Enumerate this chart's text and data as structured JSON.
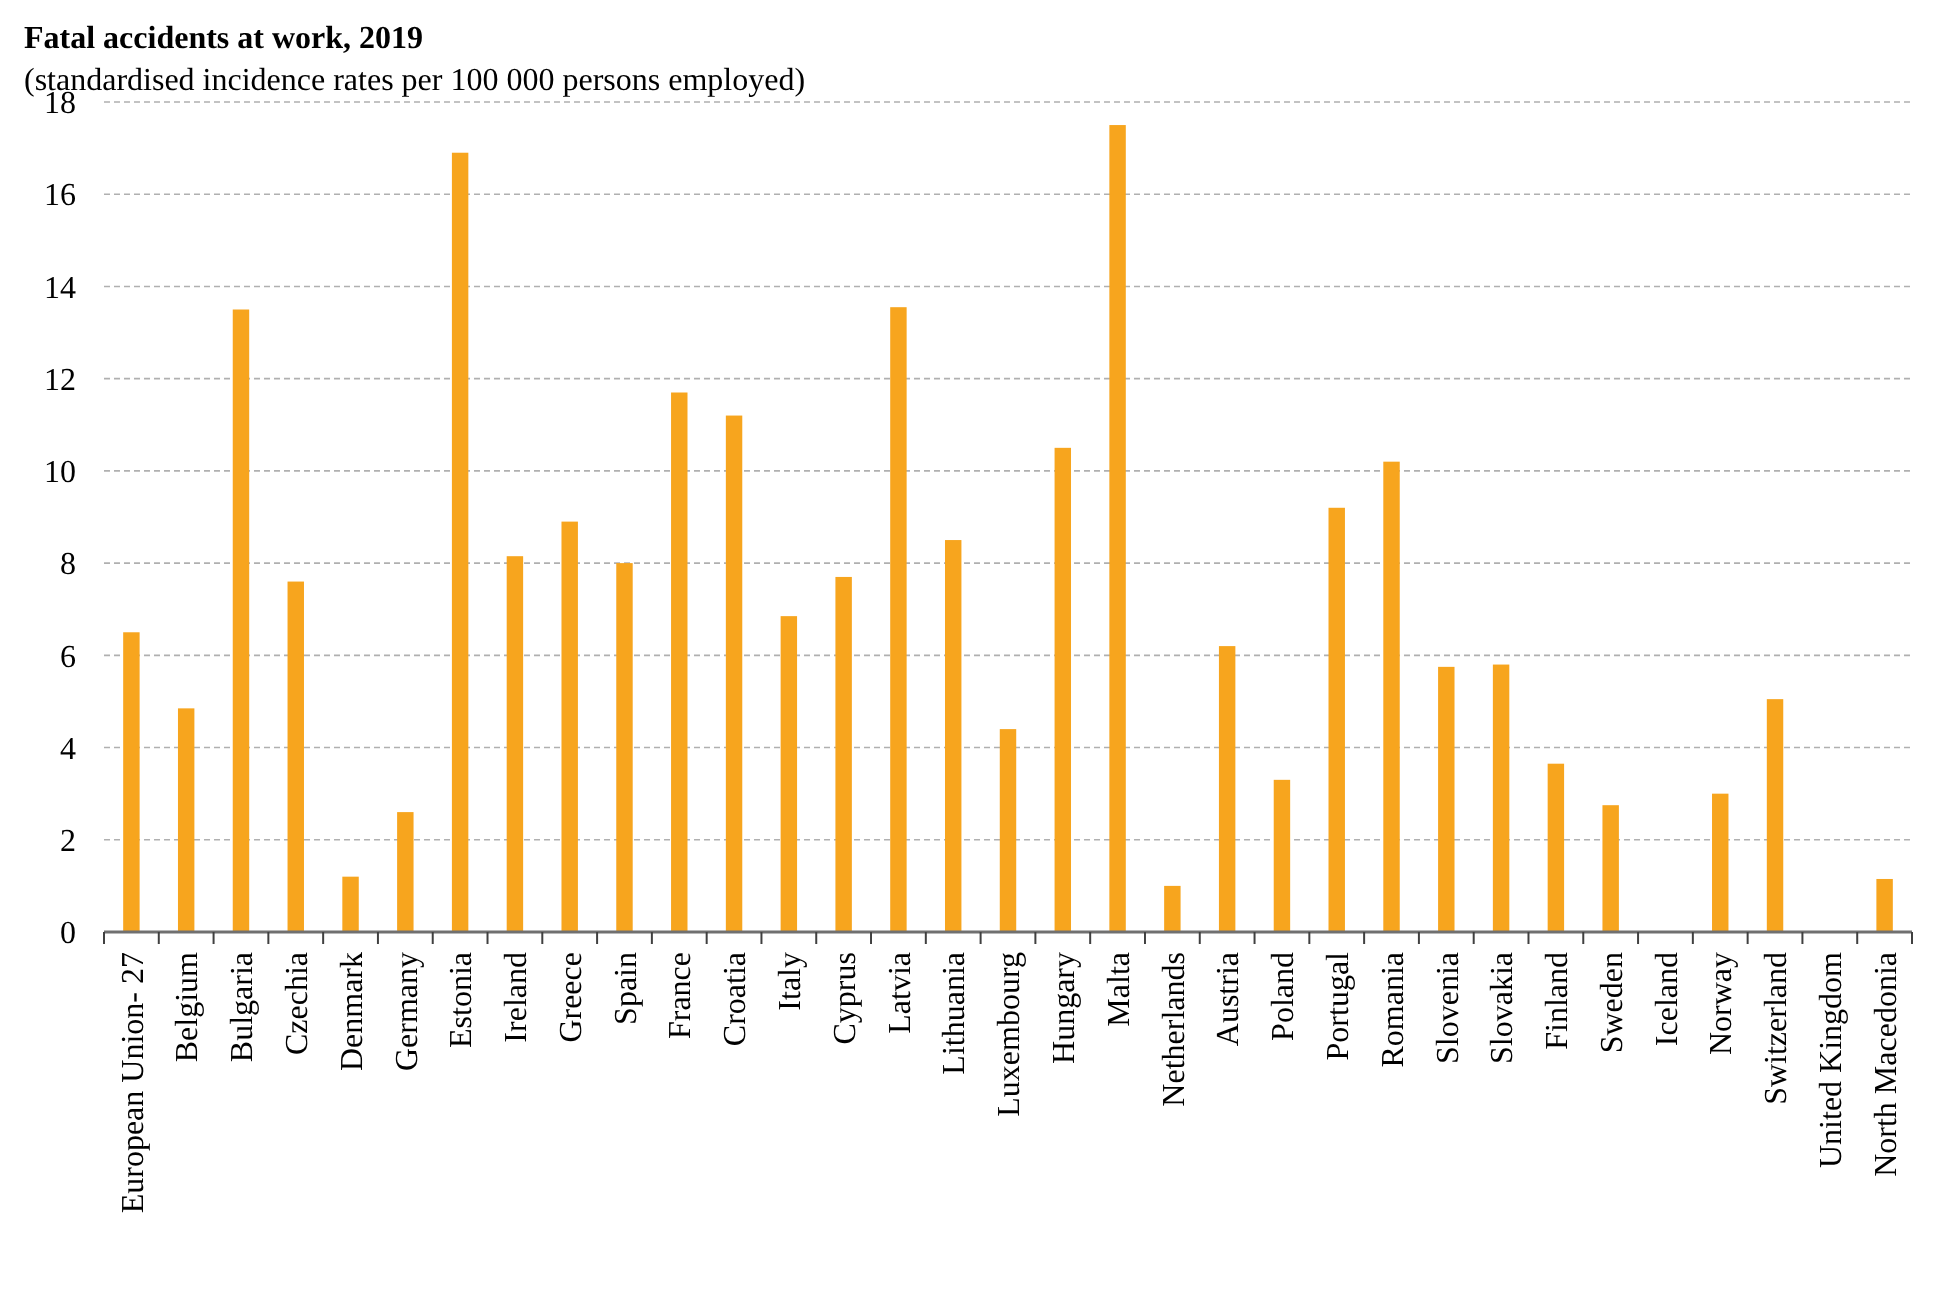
{
  "chart_data": {
    "type": "bar",
    "title": "Fatal accidents at work, 2019",
    "subtitle": "(standardised incidence rates per 100 000 persons employed)",
    "categories": [
      "European Union- 27",
      "Belgium",
      "Bulgaria",
      "Czechia",
      "Denmark",
      "Germany",
      "Estonia",
      "Ireland",
      "Greece",
      "Spain",
      "France",
      "Croatia",
      "Italy",
      "Cyprus",
      "Latvia",
      "Lithuania",
      "Luxembourg",
      "Hungary",
      "Malta",
      "Netherlands",
      "Austria",
      "Poland",
      "Portugal",
      "Romania",
      "Slovenia",
      "Slovakia",
      "Finland",
      "Sweden",
      "Iceland",
      "Norway",
      "Switzerland",
      "United Kingdom",
      "North Macedonia"
    ],
    "values": [
      6.5,
      4.85,
      13.5,
      7.6,
      1.2,
      2.6,
      16.9,
      8.15,
      8.9,
      8.0,
      11.7,
      11.2,
      6.85,
      7.7,
      13.55,
      8.5,
      4.4,
      10.5,
      17.5,
      1.0,
      6.2,
      3.3,
      9.2,
      10.2,
      5.75,
      5.8,
      3.65,
      2.75,
      null,
      3.0,
      5.05,
      null,
      1.15
    ],
    "color": "#f7a51e",
    "ylim": [
      0,
      18
    ],
    "yticks": [
      0,
      2,
      4,
      6,
      8,
      10,
      12,
      14,
      16,
      18
    ],
    "grid": "y"
  }
}
